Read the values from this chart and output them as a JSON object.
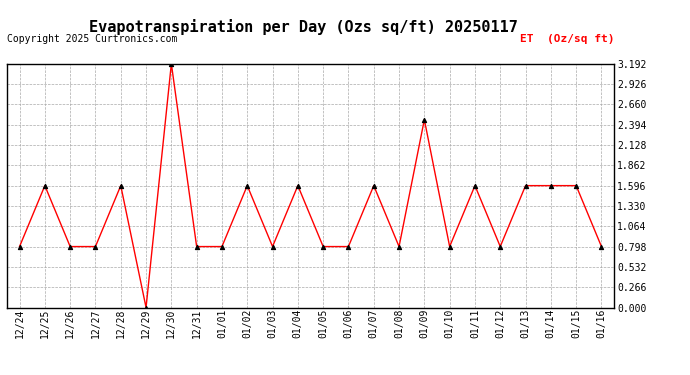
{
  "title": "Evapotranspiration per Day (Ozs sq/ft) 20250117",
  "copyright": "Copyright 2025 Curtronics.com",
  "legend_label": "ET  (Oz/sq ft)",
  "x_labels": [
    "12/24",
    "12/25",
    "12/26",
    "12/27",
    "12/28",
    "12/29",
    "12/30",
    "12/31",
    "01/01",
    "01/02",
    "01/03",
    "01/04",
    "01/05",
    "01/06",
    "01/07",
    "01/08",
    "01/09",
    "01/10",
    "01/11",
    "01/12",
    "01/13",
    "01/14",
    "01/15",
    "01/16"
  ],
  "y_values": [
    0.798,
    1.596,
    0.798,
    0.798,
    1.596,
    0.0,
    3.192,
    0.798,
    0.798,
    1.596,
    0.798,
    1.596,
    0.798,
    0.798,
    1.596,
    0.798,
    2.46,
    0.798,
    1.596,
    0.798,
    1.596,
    1.596,
    1.596,
    0.798
  ],
  "line_color": "#ff0000",
  "marker_color": "#000000",
  "background_color": "#ffffff",
  "grid_color": "#aaaaaa",
  "yticks": [
    0.0,
    0.266,
    0.532,
    0.798,
    1.064,
    1.33,
    1.596,
    1.862,
    2.128,
    2.394,
    2.66,
    2.926,
    3.192
  ],
  "ylim": [
    0.0,
    3.192
  ],
  "title_fontsize": 11,
  "copyright_fontsize": 7,
  "legend_fontsize": 8,
  "tick_fontsize": 7,
  "legend_color": "#ff0000",
  "axes_linewidth": 1.0
}
